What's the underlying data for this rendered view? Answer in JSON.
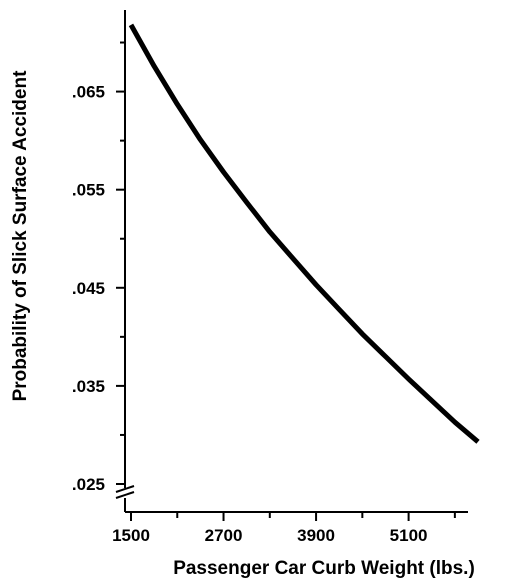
{
  "chart_data": {
    "type": "line",
    "title": "",
    "xlabel": "Passenger Car Curb Weight (lbs.)",
    "ylabel": "Probability of Slick Surface Accident",
    "x_ticks": [
      1500,
      2700,
      3900,
      5100
    ],
    "x_tick_labels": [
      "1500",
      "2700",
      "3900",
      "5100"
    ],
    "y_ticks": [
      0.025,
      0.035,
      0.045,
      0.055,
      0.065
    ],
    "y_tick_labels": [
      ".025",
      ".035",
      ".045",
      ".055",
      ".065"
    ],
    "xlim": [
      1500,
      6000
    ],
    "ylim": [
      0.025,
      0.0725
    ],
    "axis_break": "y-axis, near bottom",
    "grid": false,
    "legend": "none",
    "line_color": "#000000",
    "series": [
      {
        "x": [
          1500,
          1800,
          2100,
          2400,
          2700,
          3000,
          3300,
          3600,
          3900,
          4200,
          4500,
          4800,
          5100,
          5400,
          5700,
          6000
        ],
        "values": [
          0.0718,
          0.0676,
          0.0637,
          0.0601,
          0.0568,
          0.0537,
          0.0507,
          0.048,
          0.0453,
          0.0428,
          0.0403,
          0.038,
          0.0357,
          0.0335,
          0.0313,
          0.0293
        ]
      }
    ]
  }
}
